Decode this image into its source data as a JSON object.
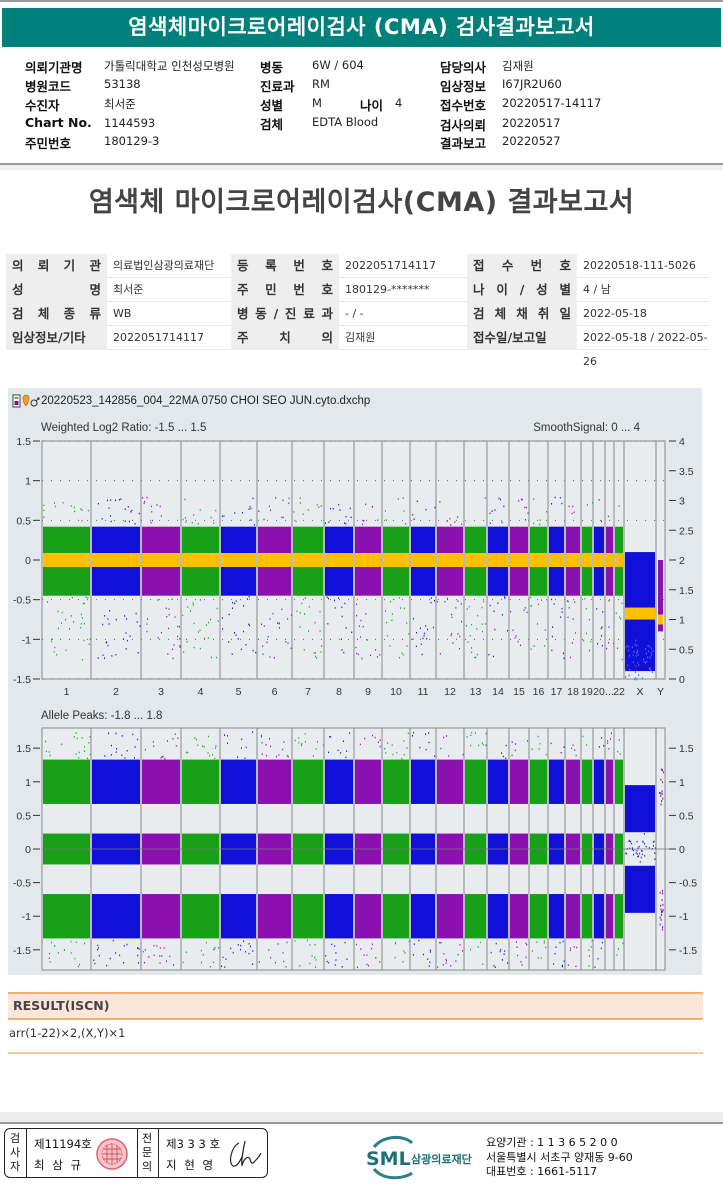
{
  "header": {
    "title": "염색체마이크로어레이검사 (CMA) 검사결과보고서"
  },
  "patient_info": {
    "col1": [
      {
        "label": "의뢰기관명",
        "value": "가톨릭대학교 인천성모병원"
      },
      {
        "label": "병원코드",
        "value": "53138"
      },
      {
        "label": "수진자",
        "value": "최서준"
      },
      {
        "label": "Chart No.",
        "value": "1144593"
      },
      {
        "label": "주민번호",
        "value": "180129-3"
      }
    ],
    "col2": [
      {
        "label": "병동",
        "value": "6W / 604"
      },
      {
        "label": "진료과",
        "value": "RM"
      },
      {
        "label": "성별",
        "value": "M"
      },
      {
        "label": "검체",
        "value": "EDTA Blood"
      }
    ],
    "age": {
      "label": "나이",
      "value": "4"
    },
    "col3": [
      {
        "label": "담당의사",
        "value": "김재원"
      },
      {
        "label": "임상정보",
        "value": "I67JR2U60"
      },
      {
        "label": "접수번호",
        "value": "20220517-14117"
      },
      {
        "label": "검사의뢰",
        "value": "20220517"
      },
      {
        "label": "결과보고",
        "value": "20220527"
      }
    ]
  },
  "report": {
    "title": "염색체 마이크로어레이검사(CMA) 결과보고서",
    "rows": [
      [
        {
          "label": [
            "의",
            "뢰",
            "기",
            "관"
          ],
          "value": "의료법인삼광의료재단"
        },
        {
          "label": [
            "등",
            "록",
            "번",
            "호"
          ],
          "value": "2022051714117"
        },
        {
          "label": [
            "접",
            "수",
            "번",
            "호"
          ],
          "value": "20220518-111-5026"
        }
      ],
      [
        {
          "label": [
            "성",
            "명"
          ],
          "value": "최서준"
        },
        {
          "label": [
            "주",
            "민",
            "번",
            "호"
          ],
          "value": "180129-*******"
        },
        {
          "label": [
            "나",
            "이",
            "/",
            "성",
            "별"
          ],
          "value": "4 / 남"
        }
      ],
      [
        {
          "label": [
            "검",
            "체",
            "종",
            "류"
          ],
          "value": "WB"
        },
        {
          "label": [
            "병",
            "동",
            "/",
            "진",
            "료",
            "과"
          ],
          "value": "- / -"
        },
        {
          "label": [
            "검",
            "체",
            "채",
            "취",
            "일"
          ],
          "value": "2022-05-18"
        }
      ],
      [
        {
          "label": [
            "임상정보/기타"
          ],
          "value": "2022051714117"
        },
        {
          "label": [
            "주",
            "치",
            "의"
          ],
          "value": "김재원"
        },
        {
          "label": [
            "접수일/보고일"
          ],
          "value": "2022-05-18 / 2022-05-26"
        }
      ]
    ]
  },
  "chart_file": {
    "icons": [
      "chip-icon",
      "pin-icon",
      "male-icon"
    ],
    "filename": "20220523_142856_004_22MA 0750 CHOI SEO JUN.cyto.dxchp"
  },
  "chart_data": [
    {
      "type": "scatter",
      "title": "Weighted Log2 Ratio: -1.5 ... 1.5",
      "right_title": "SmoothSignal: 0 ... 4",
      "ylim": [
        -1.5,
        1.5
      ],
      "y2lim": [
        0,
        4
      ],
      "yticks": [
        "1.5",
        "1",
        "0.5",
        "0",
        "-0.5",
        "-1",
        "-1.5"
      ],
      "y2ticks": [
        "4",
        "3.5",
        "3",
        "2.5",
        "2",
        "1.5",
        "1",
        "0.5",
        "0"
      ],
      "categories": [
        "1",
        "2",
        "3",
        "4",
        "5",
        "6",
        "7",
        "8",
        "9",
        "10",
        "11",
        "12",
        "13",
        "14",
        "15",
        "16",
        "17",
        "18",
        "19",
        "20",
        "...",
        "22",
        "X",
        "Y"
      ],
      "series": [
        {
          "name": "log2 ratio band (chr 1-22)",
          "spread": 0.45,
          "center": 0
        },
        {
          "name": "SmoothSignal (chr 1-22)",
          "value": 2
        },
        {
          "name": "SmoothSignal (chr X)",
          "value": 1.1
        },
        {
          "name": "SmoothSignal (chr Y)",
          "value": 1.0
        }
      ],
      "chrom_colors": [
        "green",
        "blue",
        "purple",
        "green",
        "blue",
        "purple",
        "green",
        "blue",
        "purple",
        "green",
        "blue",
        "purple",
        "green",
        "blue",
        "purple",
        "green",
        "blue",
        "purple",
        "green",
        "blue",
        "purple",
        "green",
        "blue",
        "purple"
      ],
      "colors": {
        "green": "#18a018",
        "blue": "#1010d8",
        "purple": "#8a10b0",
        "smooth": "#ffc000"
      }
    },
    {
      "type": "scatter",
      "title": "Allele Peaks: -1.8 ... 1.8",
      "ylim": [
        -1.8,
        1.8
      ],
      "yticks": [
        "1.5",
        "1",
        "0.5",
        "0",
        "-0.5",
        "-1",
        "-1.5"
      ],
      "y2ticks": [
        "1.5",
        "1",
        "0.5",
        "0",
        "-0.5",
        "-1",
        "-1.5"
      ],
      "peaks": [
        1,
        0,
        -1
      ],
      "x_peaks": [
        0.6,
        -0.6
      ]
    }
  ],
  "result": {
    "heading": "RESULT(ISCN)",
    "text": "arr(1-22)×2,(X,Y)×1"
  },
  "signatures": {
    "examiner_label": [
      "검",
      "사",
      "자"
    ],
    "examiner_no": "제11194호",
    "examiner_name": "최 삼 규",
    "specialist_label": [
      "전",
      "문",
      "의"
    ],
    "specialist_no": "제3 3 3 호",
    "specialist_name": "지 현 영"
  },
  "footer": {
    "logo_text": "SML",
    "org_name": "삼광의료재단",
    "lines": [
      "요양기관 : 1 1 3 6 5 2 0 0",
      "서울특별시 서초구 양재동 9-60",
      "대표번호 : 1661-5117"
    ]
  }
}
